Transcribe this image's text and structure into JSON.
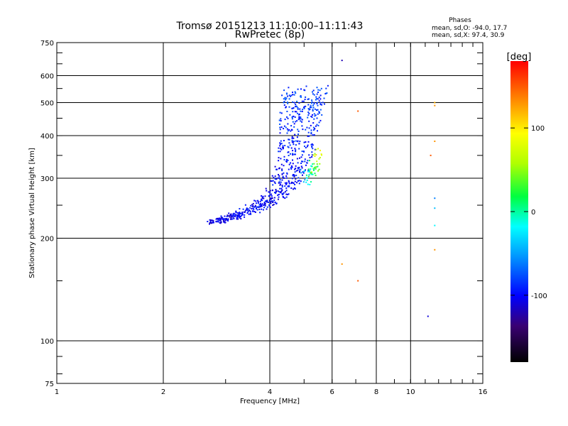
{
  "chart_data": {
    "type": "scatter",
    "title": "Tromsø 20151213 11:10:00–11:11:43",
    "subtitle": "RwPretec (8p)",
    "xlabel": "Frequency [MHz]",
    "ylabel": "Stationary phase Virtual Height [km]",
    "xscale": "log",
    "yscale": "log",
    "xlim": [
      1,
      16
    ],
    "ylim": [
      75,
      750
    ],
    "grid": true,
    "xticks": [
      1,
      2,
      4,
      6,
      8,
      10,
      16
    ],
    "xtick_labels": [
      "1",
      "2",
      "4",
      "6",
      "8",
      "10",
      "16"
    ],
    "x_gridlines": [
      2,
      4,
      6,
      8,
      10
    ],
    "yticks": [
      75,
      100,
      200,
      300,
      400,
      500,
      600,
      750
    ],
    "ytick_labels": [
      "75",
      "100",
      "200",
      "300",
      "400",
      "500",
      "600",
      "750"
    ],
    "y_gridlines": [
      100,
      200,
      300,
      400,
      500,
      600
    ],
    "legend": {
      "title": "Phases",
      "lines": [
        "mean, sd,O: -94.0, 17.7",
        "mean, sd,X:  97.4, 30.9"
      ],
      "placement": "top-right"
    },
    "colorbar": {
      "label": "[deg]",
      "min": -180,
      "max": 180,
      "ticks": [
        100,
        0,
        -100
      ],
      "tick_labels": [
        "100",
        "0",
        "-100"
      ],
      "colormap": "rainbow"
    },
    "trace": {
      "description": "O-mode ionogram trace, densely sampled",
      "anchor_points": [
        {
          "f": 2.7,
          "h": 222,
          "phase": -110
        },
        {
          "f": 3.0,
          "h": 228,
          "phase": -105
        },
        {
          "f": 3.5,
          "h": 240,
          "phase": -100
        },
        {
          "f": 4.0,
          "h": 258,
          "phase": -100
        },
        {
          "f": 4.4,
          "h": 285,
          "phase": -98
        },
        {
          "f": 4.7,
          "h": 330,
          "phase": -95
        },
        {
          "f": 4.85,
          "h": 400,
          "phase": -90
        },
        {
          "f": 4.95,
          "h": 480,
          "phase": -85
        },
        {
          "f": 5.1,
          "h": 540,
          "phase": -80
        }
      ],
      "count": 700
    },
    "x_mode_branch": {
      "anchor_points": [
        {
          "f": 5.0,
          "h": 300,
          "phase": -40
        },
        {
          "f": 5.3,
          "h": 320,
          "phase": 20
        },
        {
          "f": 5.5,
          "h": 350,
          "phase": 90
        }
      ],
      "count": 60
    },
    "outliers": [
      {
        "f": 6.4,
        "h": 665,
        "phase": -120
      },
      {
        "f": 7.1,
        "h": 472,
        "phase": 150
      },
      {
        "f": 6.4,
        "h": 168,
        "phase": 130
      },
      {
        "f": 7.1,
        "h": 150,
        "phase": 150
      },
      {
        "f": 11.7,
        "h": 500,
        "phase": 120
      },
      {
        "f": 11.7,
        "h": 490,
        "phase": 130
      },
      {
        "f": 11.7,
        "h": 385,
        "phase": 130
      },
      {
        "f": 11.4,
        "h": 350,
        "phase": 150
      },
      {
        "f": 11.7,
        "h": 262,
        "phase": -60
      },
      {
        "f": 11.7,
        "h": 245,
        "phase": -40
      },
      {
        "f": 11.7,
        "h": 218,
        "phase": -20
      },
      {
        "f": 11.7,
        "h": 185,
        "phase": 130
      },
      {
        "f": 11.2,
        "h": 118,
        "phase": -110
      }
    ]
  }
}
